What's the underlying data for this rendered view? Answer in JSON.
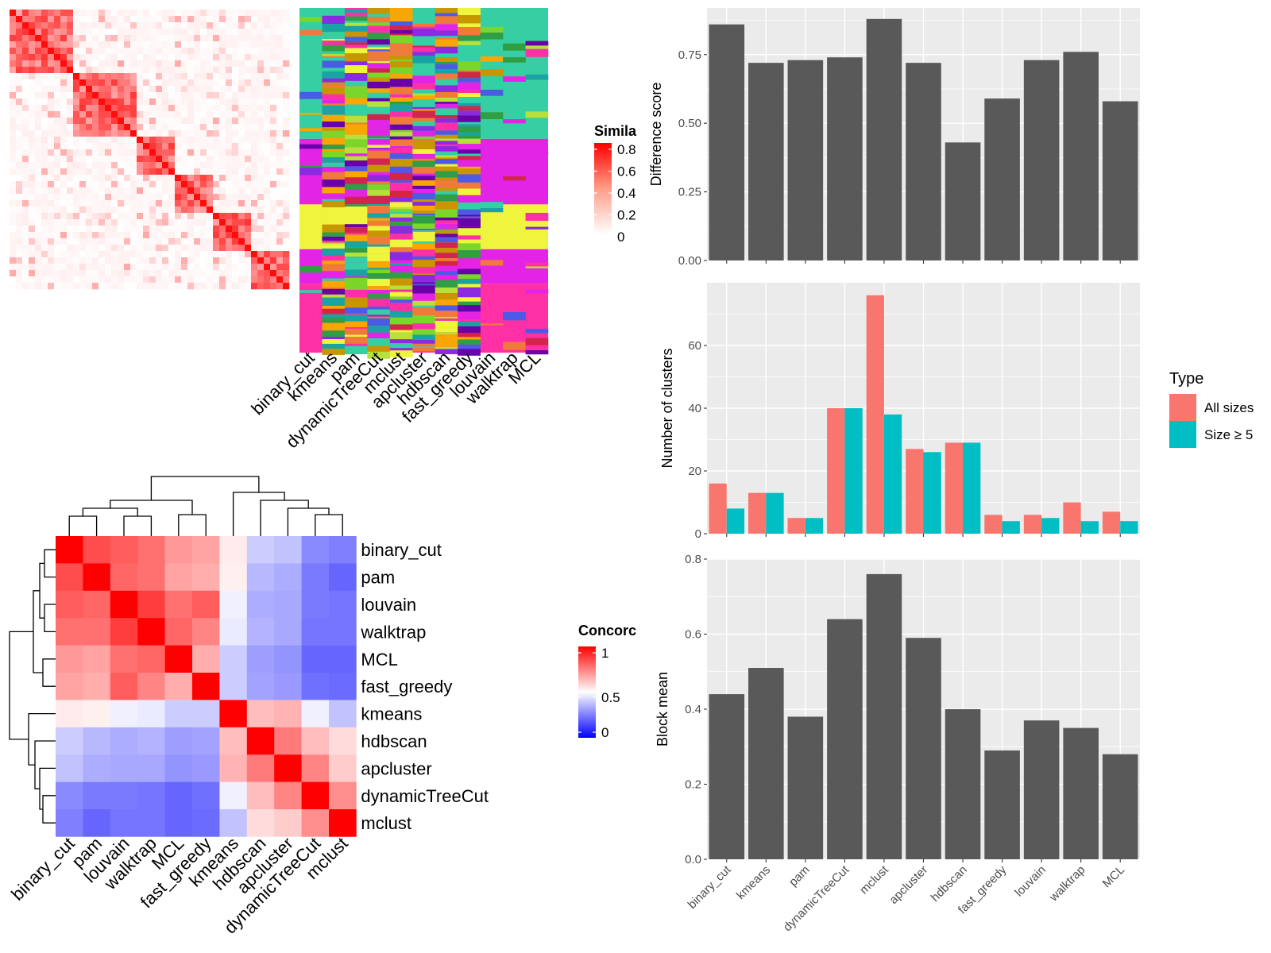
{
  "colors": {
    "panel_bg": "#ebebeb",
    "grid": "#ffffff",
    "bar_dark": "#595959",
    "all_sizes": "#f8766d",
    "size5": "#00bfc4",
    "sim_high": "#ff0000",
    "sim_low": "#ffffff",
    "conc_high": "#ff0000",
    "conc_mid": "#ffffff",
    "conc_low": "#0000ff"
  },
  "similarity_legend": {
    "title": "Simila",
    "ticks": [
      "0.8",
      "0.6",
      "0.4",
      "0.2",
      "0"
    ]
  },
  "concordance_legend": {
    "title": "Concorc",
    "ticks": [
      "1",
      "0.5",
      "0"
    ]
  },
  "type_legend": {
    "title": "Type",
    "items": [
      "All sizes",
      "Size ≥ 5"
    ]
  },
  "top_heatmap": {
    "method_labels": [
      "binary_cut",
      "kmeans",
      "pam",
      "dynamicTreeCut",
      "mclust",
      "apcluster",
      "hdbscan",
      "fast_greedy",
      "louvain",
      "walktrap",
      "MCL"
    ]
  },
  "chart_data": [
    {
      "type": "heatmap",
      "title": "",
      "rows": [
        "binary_cut",
        "pam",
        "louvain",
        "walktrap",
        "MCL",
        "fast_greedy",
        "kmeans",
        "hdbscan",
        "apcluster",
        "dynamicTreeCut",
        "mclust"
      ],
      "cols": [
        "binary_cut",
        "pam",
        "louvain",
        "walktrap",
        "MCL",
        "fast_greedy",
        "kmeans",
        "hdbscan",
        "apcluster",
        "dynamicTreeCut",
        "mclust"
      ],
      "values": [
        [
          1.0,
          0.85,
          0.82,
          0.78,
          0.7,
          0.68,
          0.54,
          0.4,
          0.38,
          0.27,
          0.25
        ],
        [
          0.85,
          1.0,
          0.8,
          0.78,
          0.68,
          0.66,
          0.53,
          0.36,
          0.34,
          0.24,
          0.2
        ],
        [
          0.82,
          0.8,
          1.0,
          0.88,
          0.78,
          0.82,
          0.47,
          0.34,
          0.33,
          0.24,
          0.23
        ],
        [
          0.78,
          0.78,
          0.88,
          1.0,
          0.8,
          0.74,
          0.46,
          0.35,
          0.33,
          0.23,
          0.23
        ],
        [
          0.7,
          0.68,
          0.78,
          0.8,
          1.0,
          0.66,
          0.4,
          0.31,
          0.29,
          0.2,
          0.2
        ],
        [
          0.68,
          0.66,
          0.82,
          0.74,
          0.66,
          1.0,
          0.4,
          0.32,
          0.3,
          0.22,
          0.21
        ],
        [
          0.54,
          0.53,
          0.47,
          0.46,
          0.4,
          0.4,
          1.0,
          0.63,
          0.65,
          0.47,
          0.38
        ],
        [
          0.4,
          0.36,
          0.34,
          0.35,
          0.31,
          0.32,
          0.63,
          1.0,
          0.76,
          0.63,
          0.57
        ],
        [
          0.38,
          0.34,
          0.33,
          0.33,
          0.29,
          0.3,
          0.65,
          0.76,
          1.0,
          0.74,
          0.6
        ],
        [
          0.27,
          0.24,
          0.24,
          0.23,
          0.2,
          0.22,
          0.47,
          0.63,
          0.74,
          1.0,
          0.72
        ],
        [
          0.25,
          0.2,
          0.23,
          0.23,
          0.2,
          0.21,
          0.38,
          0.57,
          0.6,
          0.72,
          1.0
        ]
      ],
      "range": [
        0,
        1
      ]
    },
    {
      "type": "bar",
      "title": "",
      "xlabel": "",
      "ylabel": "Difference score",
      "categories": [
        "binary_cut",
        "kmeans",
        "pam",
        "dynamicTreeCut",
        "mclust",
        "apcluster",
        "hdbscan",
        "fast_greedy",
        "louvain",
        "walktrap",
        "MCL"
      ],
      "values": [
        0.86,
        0.72,
        0.73,
        0.74,
        0.88,
        0.72,
        0.43,
        0.59,
        0.73,
        0.76,
        0.58
      ],
      "yticks": [
        "0.00",
        "0.25",
        "0.50",
        "0.75"
      ],
      "ylim": [
        0,
        0.92
      ],
      "grid": true
    },
    {
      "type": "bar",
      "title": "",
      "xlabel": "",
      "ylabel": "Number of clusters",
      "categories": [
        "binary_cut",
        "kmeans",
        "pam",
        "dynamicTreeCut",
        "mclust",
        "apcluster",
        "hdbscan",
        "fast_greedy",
        "louvain",
        "walktrap",
        "MCL"
      ],
      "series": [
        {
          "name": "All sizes",
          "values": [
            16,
            13,
            5,
            40,
            76,
            27,
            29,
            6,
            6,
            10,
            7
          ]
        },
        {
          "name": "Size ≥ 5",
          "values": [
            8,
            13,
            5,
            40,
            38,
            26,
            29,
            4,
            5,
            4,
            4
          ]
        }
      ],
      "yticks": [
        "0",
        "20",
        "40",
        "60"
      ],
      "ylim": [
        0,
        80
      ],
      "legend": "right",
      "grid": true
    },
    {
      "type": "bar",
      "title": "",
      "xlabel": "",
      "ylabel": "Block mean",
      "categories": [
        "binary_cut",
        "kmeans",
        "pam",
        "dynamicTreeCut",
        "mclust",
        "apcluster",
        "hdbscan",
        "fast_greedy",
        "louvain",
        "walktrap",
        "MCL"
      ],
      "values": [
        0.44,
        0.51,
        0.38,
        0.64,
        0.76,
        0.59,
        0.4,
        0.29,
        0.37,
        0.35,
        0.28
      ],
      "yticks": [
        "0.0",
        "0.2",
        "0.4",
        "0.6",
        "0.8"
      ],
      "ylim": [
        0,
        0.8
      ],
      "grid": true
    }
  ]
}
